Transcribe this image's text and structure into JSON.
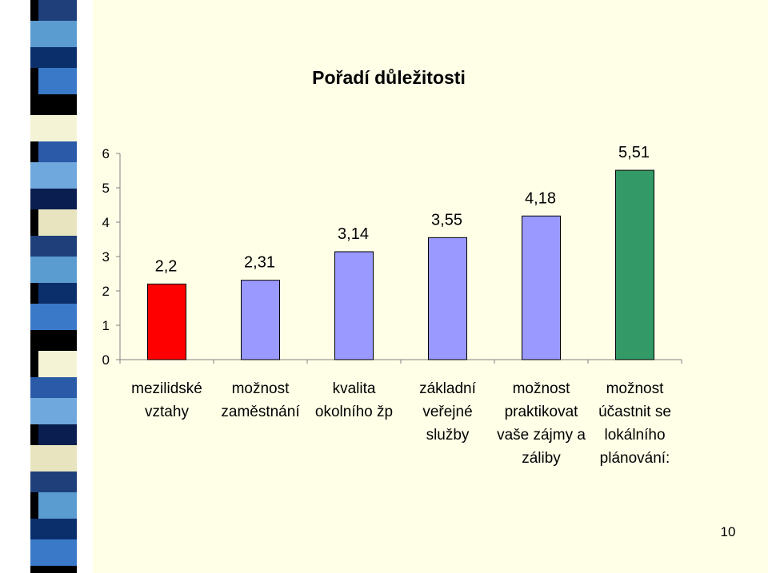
{
  "slide": {
    "page_number": "10",
    "background": "#ffffe8"
  },
  "decoration": {
    "strip_colors": [
      "#1f3f7a",
      "#5a9bd0",
      "#0b2f6b",
      "#3a78c8",
      "#000000",
      "#f5f3d5",
      "#2a5aa8",
      "#6fa8dc",
      "#0a1f4f",
      "#e8e4bf"
    ]
  },
  "chart_data": {
    "type": "bar",
    "title": "Pořadí důležitosti",
    "categories": [
      [
        "mezilidské",
        "vztahy"
      ],
      [
        "možnost",
        "zaměstnání"
      ],
      [
        "kvalita",
        "okolního žp"
      ],
      [
        "základní",
        "veřejné",
        "služby"
      ],
      [
        "možnost",
        "praktikovat",
        "vaše zájmy a",
        "záliby"
      ],
      [
        "možnost",
        "účastnit se",
        "lokálního",
        "plánování:"
      ]
    ],
    "values": [
      2.2,
      2.31,
      3.14,
      3.55,
      4.18,
      5.51
    ],
    "value_labels": [
      "2,2",
      "2,31",
      "3,14",
      "3,55",
      "4,18",
      "5,51"
    ],
    "bar_colors": [
      "#ff0000",
      "#9999ff",
      "#9999ff",
      "#9999ff",
      "#9999ff",
      "#339966"
    ],
    "ylim": [
      0,
      6
    ],
    "yticks": [
      "0",
      "1",
      "2",
      "3",
      "4",
      "5",
      "6"
    ],
    "grid": false,
    "legend": false
  }
}
